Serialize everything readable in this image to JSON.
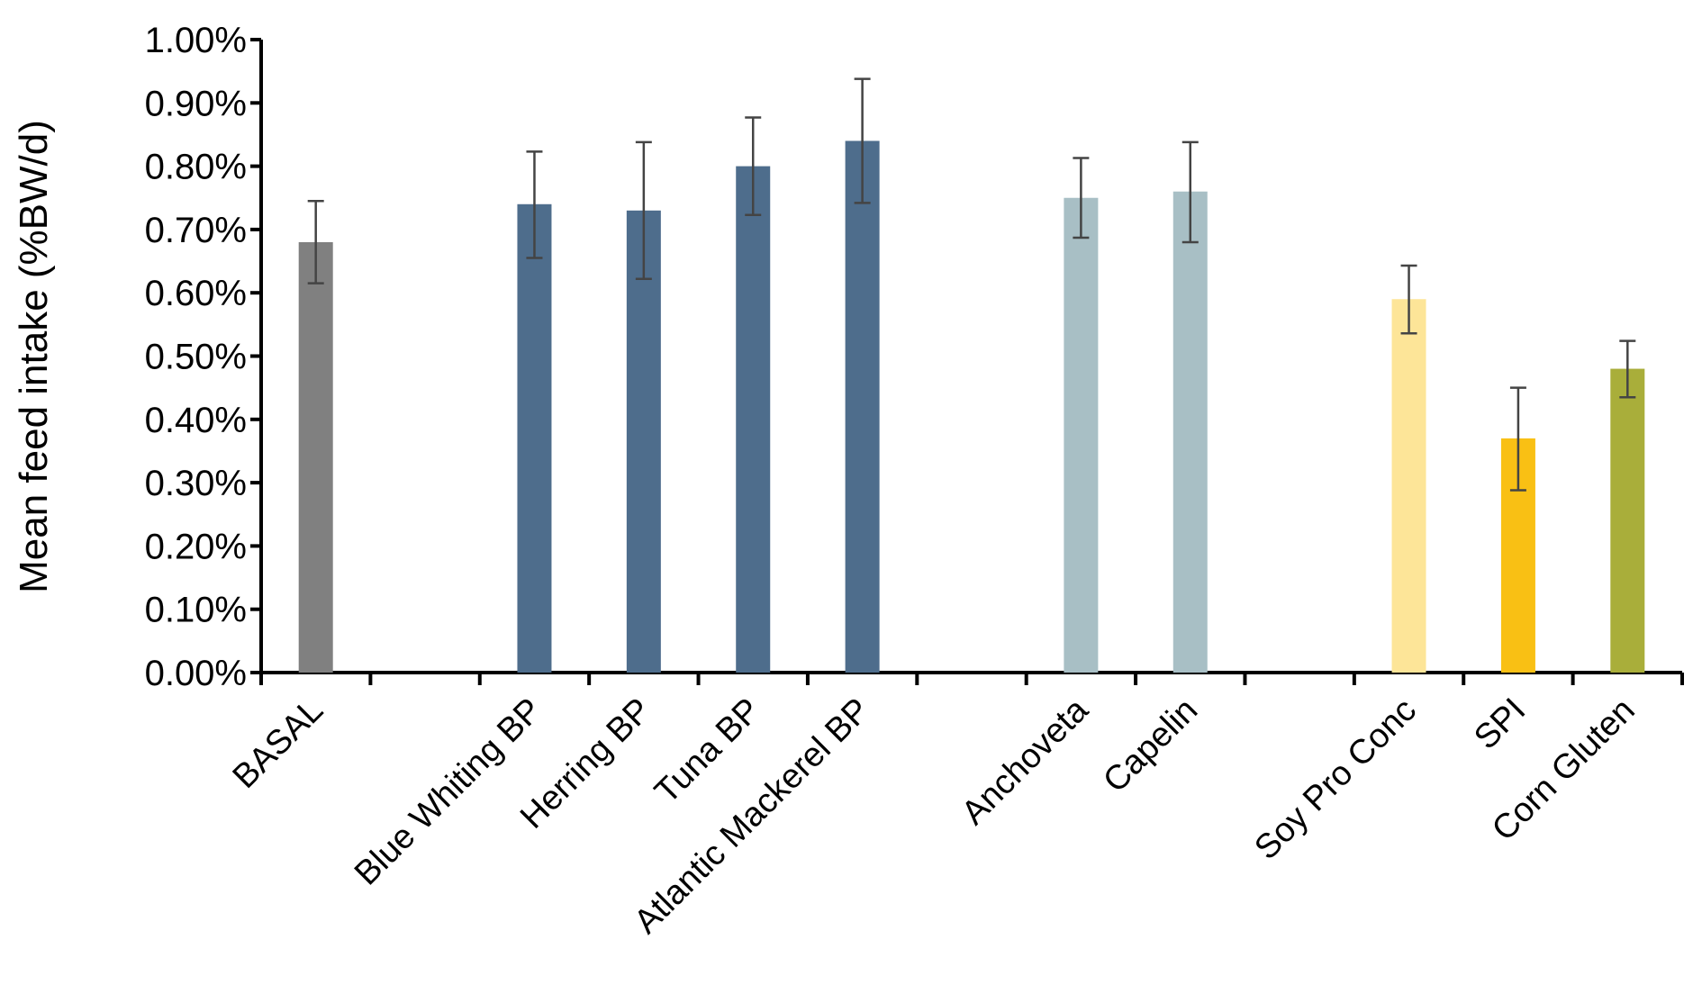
{
  "chart_data": {
    "type": "bar",
    "title": "",
    "xlabel": "",
    "ylabel": "Mean feed intake (%BW/d)",
    "ylim": [
      0,
      1.0
    ],
    "yticks": [
      "0.00%",
      "0.10%",
      "0.20%",
      "0.30%",
      "0.40%",
      "0.50%",
      "0.60%",
      "0.70%",
      "0.80%",
      "0.90%",
      "1.00%"
    ],
    "grid": false,
    "legend": "none",
    "slots": 13,
    "bars": [
      {
        "slot": 0,
        "label": "BASAL",
        "value": 0.68,
        "err_low": 0.615,
        "err_high": 0.745,
        "color": "#808080"
      },
      {
        "slot": 2,
        "label": "Blue Whiting BP",
        "value": 0.74,
        "err_low": 0.655,
        "err_high": 0.823,
        "color": "#4e6d8c"
      },
      {
        "slot": 3,
        "label": "Herring BP",
        "value": 0.73,
        "err_low": 0.622,
        "err_high": 0.838,
        "color": "#4e6d8c"
      },
      {
        "slot": 4,
        "label": "Tuna BP",
        "value": 0.8,
        "err_low": 0.723,
        "err_high": 0.877,
        "color": "#4e6d8c"
      },
      {
        "slot": 5,
        "label": "Atlantic Mackerel BP",
        "value": 0.84,
        "err_low": 0.742,
        "err_high": 0.938,
        "color": "#4e6d8c"
      },
      {
        "slot": 7,
        "label": "Anchoveta",
        "value": 0.75,
        "err_low": 0.687,
        "err_high": 0.813,
        "color": "#a8bfc5"
      },
      {
        "slot": 8,
        "label": "Capelin",
        "value": 0.76,
        "err_low": 0.68,
        "err_high": 0.838,
        "color": "#a8bfc5"
      },
      {
        "slot": 10,
        "label": "Soy Pro Conc",
        "value": 0.59,
        "err_low": 0.536,
        "err_high": 0.643,
        "color": "#fde598"
      },
      {
        "slot": 11,
        "label": "SPI",
        "value": 0.37,
        "err_low": 0.288,
        "err_high": 0.45,
        "color": "#f9c014"
      },
      {
        "slot": 12,
        "label": "Corn Gluten",
        "value": 0.48,
        "err_low": 0.435,
        "err_high": 0.524,
        "color": "#a9ae3a"
      }
    ]
  }
}
